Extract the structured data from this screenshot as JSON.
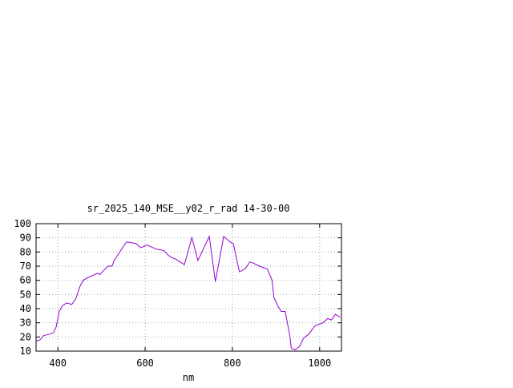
{
  "chart_data": {
    "type": "line",
    "title": "sr_2025_140_MSE__y02_r_rad 14-30-00",
    "x_label": "nm",
    "x": [
      350,
      359,
      368,
      381,
      390,
      396,
      403,
      410,
      420,
      432,
      441,
      451,
      458,
      469,
      484,
      491,
      496,
      505,
      515,
      524,
      529,
      542,
      557,
      561,
      579,
      590,
      604,
      626,
      643,
      652,
      661,
      670,
      685,
      690,
      707,
      721,
      747,
      761,
      780,
      795,
      802,
      816,
      829,
      840,
      849,
      862,
      880,
      891,
      895,
      904,
      912,
      921,
      926,
      932,
      935,
      944,
      953,
      963,
      975,
      990,
      1008,
      1018,
      1027,
      1036,
      1047
    ],
    "series": [
      {
        "name": "sr_2025_140_MSE__y02_r_rad",
        "color": "#9400d3",
        "values": [
          17,
          18,
          21,
          22,
          23,
          27,
          38,
          42,
          44,
          43,
          47,
          56,
          60,
          62,
          64,
          65,
          64,
          67,
          70,
          70,
          74,
          80,
          87,
          87,
          86,
          83,
          85,
          82,
          81,
          78,
          76,
          75,
          72,
          71,
          90,
          74,
          91,
          59,
          91,
          87,
          86,
          66,
          68,
          73,
          72,
          70,
          68,
          60,
          48,
          42,
          38,
          38,
          30,
          20,
          12,
          11,
          13,
          19,
          22,
          28,
          30,
          33,
          32,
          36,
          34
        ]
      }
    ],
    "xlim": [
      350,
      1050
    ],
    "xticks": [
      400,
      600,
      800,
      1000
    ],
    "ylim": [
      10,
      100
    ],
    "yticks": [
      10,
      20,
      30,
      40,
      50,
      60,
      70,
      80,
      90,
      100
    ],
    "grid": true
  }
}
